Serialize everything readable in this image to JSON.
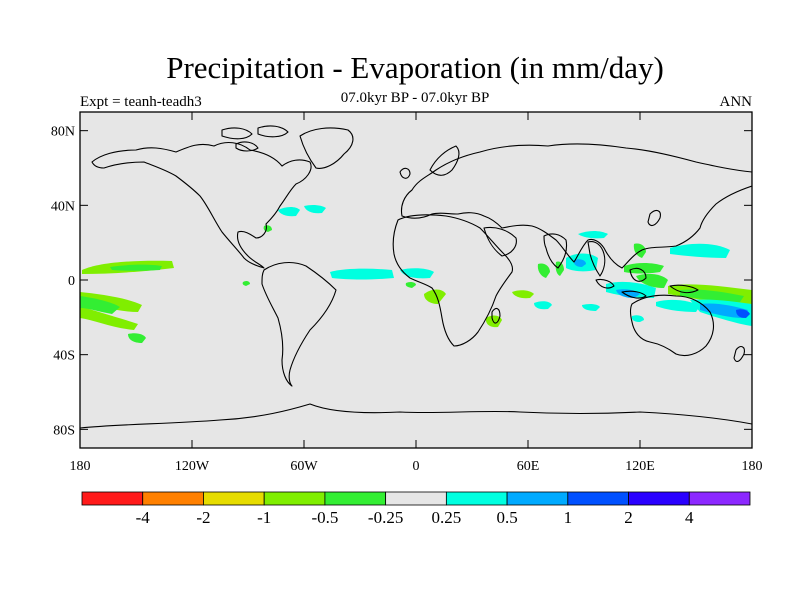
{
  "title": "Precipitation - Evaporation (in mm/day)",
  "subtitle": "07.0kyr BP - 07.0kyr BP",
  "left_label": "Expt = teanh-teadh3",
  "right_label": "ANN",
  "map": {
    "projection": "cylindrical-equidistant",
    "lon_range": [
      -180,
      180
    ],
    "lat_range": [
      -90,
      90
    ],
    "background_color": "#e6e6e6",
    "coastline_color": "#000000"
  },
  "axes": {
    "lat_ticks": [
      {
        "value": 80,
        "label": "80N"
      },
      {
        "value": 40,
        "label": "40N"
      },
      {
        "value": 0,
        "label": "0"
      },
      {
        "value": -40,
        "label": "40S"
      },
      {
        "value": -80,
        "label": "80S"
      }
    ],
    "lon_ticks": [
      {
        "value": -180,
        "label": "180"
      },
      {
        "value": -120,
        "label": "120W"
      },
      {
        "value": -60,
        "label": "60W"
      },
      {
        "value": 0,
        "label": "0"
      },
      {
        "value": 60,
        "label": "60E"
      },
      {
        "value": 120,
        "label": "120E"
      },
      {
        "value": 180,
        "label": "180"
      }
    ]
  },
  "colorbar": {
    "colors": [
      "#ff1a1a",
      "#ff8000",
      "#e6dc00",
      "#80ee00",
      "#33ee33",
      "#e6e6e6",
      "#00ffe0",
      "#00aaff",
      "#0050ff",
      "#2a00ff",
      "#8c28ff"
    ],
    "labels": [
      "-4",
      "-2",
      "-1",
      "-0.5",
      "-0.25",
      "0.25",
      "0.5",
      "1",
      "2",
      "4"
    ]
  },
  "legend_colors": {
    "light_green": "#80ee00",
    "green": "#33ee33",
    "cyan": "#00ffe0",
    "light_blue": "#00aaff"
  }
}
